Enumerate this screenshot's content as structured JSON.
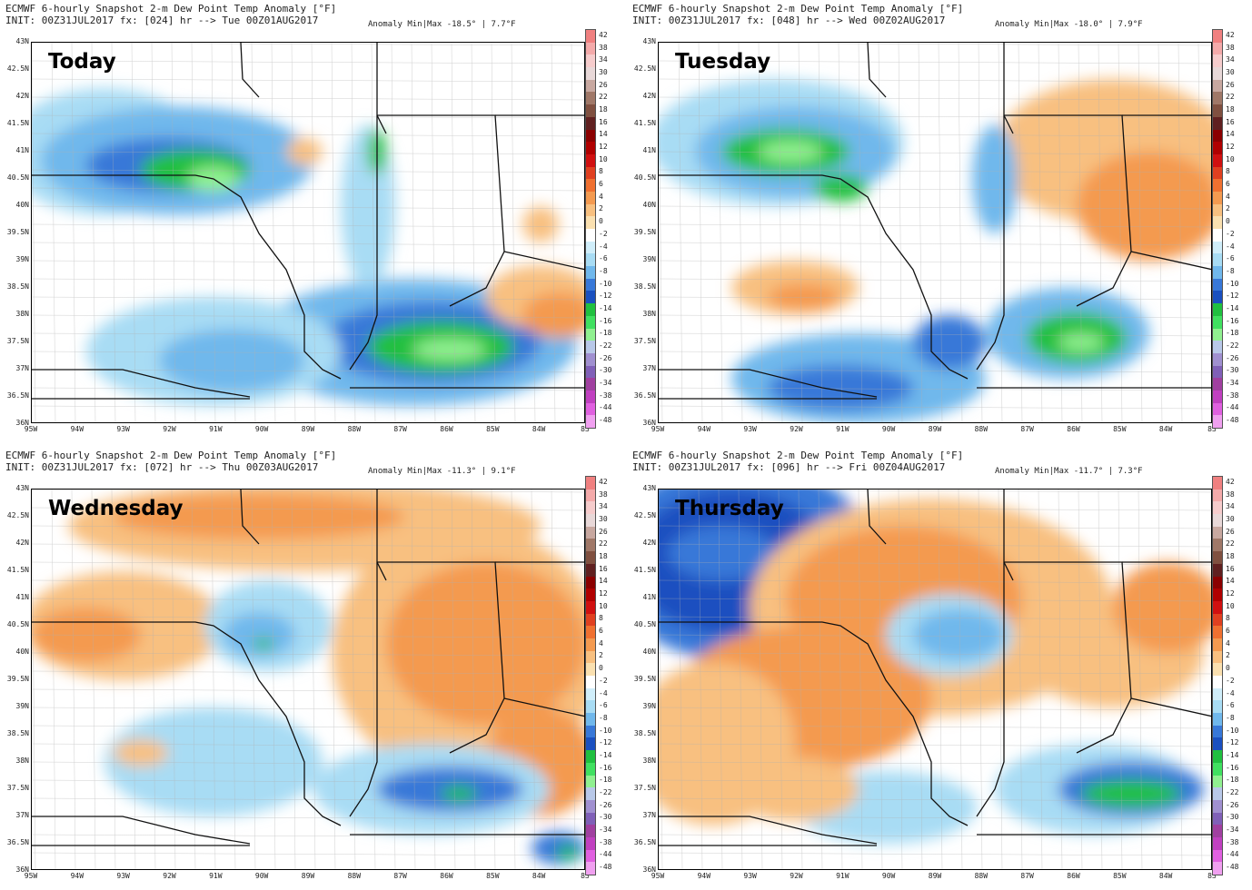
{
  "panels": [
    {
      "title": "ECMWF 6-hourly Snapshot 2-m Dew Point Temp Anomaly [°F]",
      "init": "INIT: 00Z31JUL2017 fx: [024] hr --> Tue 00Z01AUG2017",
      "anomaly": "Anomaly Min|Max -18.5° | 7.7°F",
      "day_label": "Today",
      "scheme": "dry_kentucky"
    },
    {
      "title": "ECMWF 6-hourly Snapshot 2-m Dew Point Temp Anomaly [°F]",
      "init": "INIT: 00Z31JUL2017 fx: [048] hr --> Wed 00Z02AUG2017",
      "anomaly": "Anomaly Min|Max -18.0° | 7.9°F",
      "day_label": "Tuesday",
      "scheme": "dry_mixed"
    },
    {
      "title": "ECMWF 6-hourly Snapshot 2-m Dew Point Temp Anomaly [°F]",
      "init": "INIT: 00Z31JUL2017 fx: [072] hr --> Thu 00Z03AUG2017",
      "anomaly": "Anomaly Min|Max -11.3° | 9.1°F",
      "day_label": "Wednesday",
      "scheme": "warming"
    },
    {
      "title": "ECMWF 6-hourly Snapshot 2-m Dew Point Temp Anomaly [°F]",
      "init": "INIT: 00Z31JUL2017 fx: [096] hr --> Fri 00Z04AUG2017",
      "anomaly": "Anomaly Min|Max -11.7° | 7.3°F",
      "day_label": "Thursday",
      "scheme": "humid"
    }
  ],
  "lat_labels": [
    "43N",
    "42.5N",
    "42N",
    "41.5N",
    "41N",
    "40.5N",
    "40N",
    "39.5N",
    "39N",
    "38.5N",
    "38N",
    "37.5N",
    "37N",
    "36.5N",
    "36N"
  ],
  "lon_labels": [
    "95W",
    "94W",
    "93W",
    "92W",
    "91W",
    "90W",
    "89W",
    "88W",
    "87W",
    "86W",
    "85W",
    "84W",
    "83"
  ],
  "colorbar_labels": [
    "42",
    "38",
    "34",
    "30",
    "26",
    "22",
    "18",
    "16",
    "14",
    "12",
    "10",
    "8",
    "6",
    "4",
    "2",
    "0",
    "-2",
    "-4",
    "-6",
    "-8",
    "-10",
    "-12",
    "-14",
    "-16",
    "-18",
    "-22",
    "-26",
    "-30",
    "-34",
    "-38",
    "-44",
    "-48"
  ],
  "colorbar_colors": [
    "#f08080",
    "#f4aaaa",
    "#f6cccc",
    "#e8d8d8",
    "#c8a8a0",
    "#a07868",
    "#805040",
    "#602020",
    "#8b0000",
    "#b00000",
    "#d01010",
    "#e04020",
    "#f07030",
    "#f49a50",
    "#f8c080",
    "#fae0b0",
    "#ffffff",
    "#d0eefa",
    "#a8dcf4",
    "#70b8ec",
    "#3878d8",
    "#1a50c0",
    "#20c040",
    "#40e060",
    "#90f090",
    "#b8c8e8",
    "#a090d0",
    "#8060b8",
    "#a040a0",
    "#c040c0",
    "#e060e0",
    "#f0a0f0"
  ]
}
